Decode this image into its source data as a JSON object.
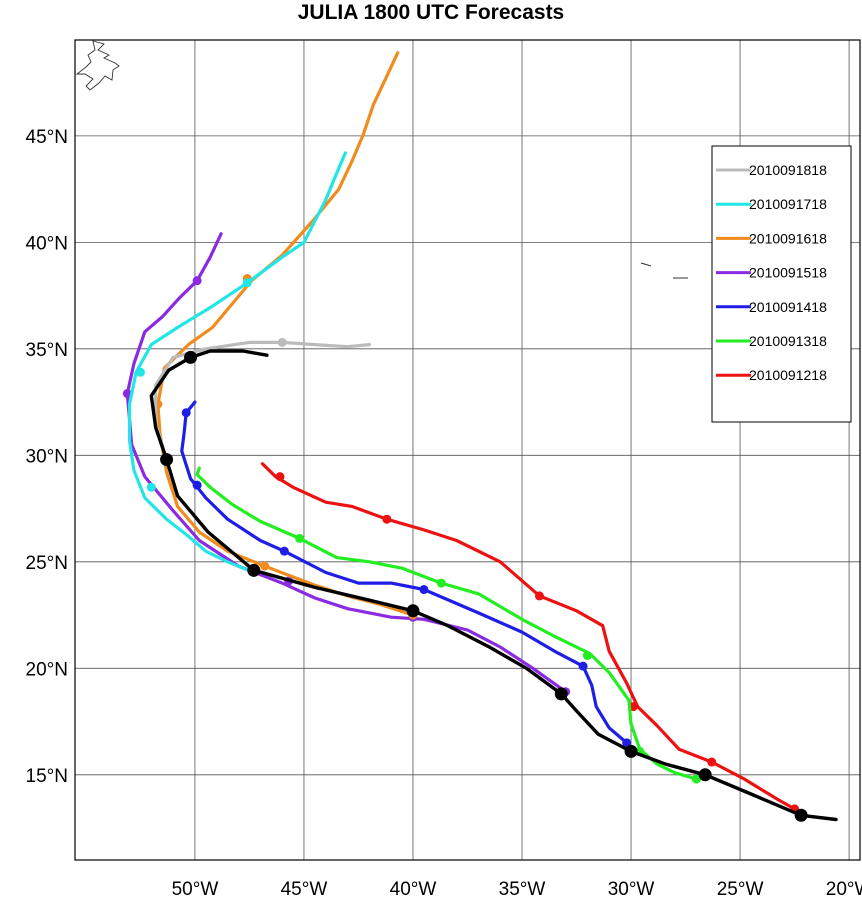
{
  "title": "JULIA 1800 UTC Forecasts",
  "chart_data": {
    "type": "line",
    "title": "JULIA 1800 UTC Forecasts",
    "x_axis": {
      "units": "degrees longitude",
      "range": [
        -55.5,
        -19.5
      ],
      "ticks": [
        -50,
        -45,
        -40,
        -35,
        -30,
        -25,
        -20
      ],
      "tick_labels": [
        "50°W",
        "45°W",
        "40°W",
        "35°W",
        "30°W",
        "25°W",
        "20°W"
      ]
    },
    "y_axis": {
      "units": "degrees latitude",
      "range": [
        11.0,
        49.5
      ],
      "ticks": [
        15,
        20,
        25,
        30,
        35,
        40,
        45
      ],
      "tick_labels": [
        "15°N",
        "20°N",
        "25°N",
        "30°N",
        "35°N",
        "40°N",
        "45°N"
      ]
    },
    "grid": true,
    "legend_position": "right",
    "best_track": {
      "color": "#000000",
      "path": [
        [
          -20.6,
          12.9
        ],
        [
          -22.2,
          13.1
        ],
        [
          -24.5,
          14.1
        ],
        [
          -26.6,
          15.0
        ],
        [
          -28.4,
          15.5
        ],
        [
          -30.0,
          16.1
        ],
        [
          -31.5,
          16.9
        ],
        [
          -32.5,
          18.0
        ],
        [
          -33.2,
          18.8
        ],
        [
          -34.8,
          20.0
        ],
        [
          -36.5,
          21.0
        ],
        [
          -38.4,
          22.0
        ],
        [
          -40.0,
          22.7
        ],
        [
          -42.0,
          23.2
        ],
        [
          -44.5,
          23.8
        ],
        [
          -47.3,
          24.6
        ],
        [
          -49.4,
          26.4
        ],
        [
          -50.8,
          28.1
        ],
        [
          -51.3,
          29.8
        ],
        [
          -51.8,
          31.3
        ],
        [
          -52.0,
          32.8
        ],
        [
          -51.2,
          34.0
        ],
        [
          -50.2,
          34.6
        ],
        [
          -49.3,
          34.9
        ],
        [
          -47.8,
          34.9
        ],
        [
          -46.7,
          34.7
        ]
      ],
      "markers": [
        [
          -22.2,
          13.1
        ],
        [
          -26.6,
          15.0
        ],
        [
          -30.0,
          16.1
        ],
        [
          -33.2,
          18.8
        ],
        [
          -40.0,
          22.7
        ],
        [
          -47.3,
          24.6
        ],
        [
          -51.3,
          29.8
        ],
        [
          -50.2,
          34.6
        ]
      ]
    },
    "series": [
      {
        "name": "2010091818",
        "color": "#bbbbbb",
        "path": [
          [
            -51.3,
            29.8
          ],
          [
            -51.8,
            31.5
          ],
          [
            -51.8,
            33.3
          ],
          [
            -51.0,
            34.6
          ],
          [
            -49.5,
            35.0
          ],
          [
            -47.5,
            35.3
          ],
          [
            -46.0,
            35.3
          ],
          [
            -44.5,
            35.2
          ],
          [
            -43.0,
            35.1
          ],
          [
            -42.0,
            35.2
          ]
        ],
        "markers": [
          [
            -51.3,
            29.8
          ],
          [
            -46.0,
            35.3
          ]
        ]
      },
      {
        "name": "2010091718",
        "color": "#22e5e5",
        "path": [
          [
            -47.3,
            24.5
          ],
          [
            -48.5,
            25.0
          ],
          [
            -49.5,
            25.5
          ],
          [
            -50.3,
            26.2
          ],
          [
            -51.3,
            27.0
          ],
          [
            -52.3,
            28.0
          ],
          [
            -52.8,
            29.3
          ],
          [
            -53.0,
            30.7
          ],
          [
            -53.0,
            32.4
          ],
          [
            -52.7,
            33.9
          ],
          [
            -52.0,
            35.2
          ],
          [
            -50.8,
            36.0
          ],
          [
            -49.2,
            37.0
          ],
          [
            -47.6,
            38.1
          ],
          [
            -46.0,
            39.3
          ],
          [
            -45.0,
            40.0
          ],
          [
            -44.0,
            42.0
          ],
          [
            -43.6,
            43.0
          ],
          [
            -43.1,
            44.2
          ]
        ],
        "markers": [
          [
            -47.3,
            24.5
          ],
          [
            -52.0,
            28.5
          ],
          [
            -52.5,
            33.9
          ],
          [
            -47.6,
            38.1
          ]
        ]
      },
      {
        "name": "2010091618",
        "color": "#f08c1e",
        "path": [
          [
            -40.0,
            22.5
          ],
          [
            -41.5,
            23.0
          ],
          [
            -43.0,
            23.4
          ],
          [
            -44.5,
            23.9
          ],
          [
            -46.8,
            24.8
          ],
          [
            -48.5,
            25.5
          ],
          [
            -49.8,
            26.4
          ],
          [
            -50.8,
            27.6
          ],
          [
            -51.3,
            29.2
          ],
          [
            -51.6,
            31.0
          ],
          [
            -51.7,
            32.4
          ],
          [
            -51.4,
            34.1
          ],
          [
            -50.3,
            35.2
          ],
          [
            -49.2,
            36.0
          ],
          [
            -48.3,
            37.1
          ],
          [
            -47.4,
            38.2
          ],
          [
            -46.0,
            39.4
          ],
          [
            -44.6,
            41.0
          ],
          [
            -43.4,
            42.5
          ],
          [
            -42.8,
            43.8
          ],
          [
            -42.3,
            45.0
          ],
          [
            -41.8,
            46.5
          ],
          [
            -41.2,
            47.8
          ],
          [
            -40.7,
            48.9
          ]
        ],
        "markers": [
          [
            -40.0,
            22.5
          ],
          [
            -46.8,
            24.8
          ],
          [
            -51.7,
            32.4
          ],
          [
            -47.6,
            38.3
          ]
        ]
      },
      {
        "name": "2010091518",
        "color": "#8a2be2",
        "path": [
          [
            -33.0,
            18.9
          ],
          [
            -34.5,
            20.0
          ],
          [
            -36.0,
            21.0
          ],
          [
            -37.5,
            21.8
          ],
          [
            -39.5,
            22.3
          ],
          [
            -41.0,
            22.4
          ],
          [
            -43.0,
            22.8
          ],
          [
            -44.5,
            23.3
          ],
          [
            -46.0,
            24.0
          ],
          [
            -48.0,
            24.8
          ],
          [
            -49.8,
            26.0
          ],
          [
            -51.0,
            27.4
          ],
          [
            -52.3,
            29.0
          ],
          [
            -52.9,
            30.5
          ],
          [
            -53.1,
            32.9
          ],
          [
            -52.8,
            34.3
          ],
          [
            -52.3,
            35.8
          ],
          [
            -51.5,
            36.5
          ],
          [
            -50.7,
            37.4
          ],
          [
            -49.9,
            38.2
          ],
          [
            -49.3,
            39.3
          ],
          [
            -48.8,
            40.4
          ]
        ],
        "markers": [
          [
            -33.0,
            18.9
          ],
          [
            -40.0,
            22.4
          ],
          [
            -45.7,
            24.1
          ],
          [
            -53.1,
            32.9
          ],
          [
            -49.9,
            38.2
          ]
        ]
      },
      {
        "name": "2010091418",
        "color": "#1e1ee6",
        "path": [
          [
            -30.2,
            16.5
          ],
          [
            -31.0,
            17.2
          ],
          [
            -31.6,
            18.2
          ],
          [
            -31.8,
            19.2
          ],
          [
            -32.2,
            20.1
          ],
          [
            -33.5,
            20.8
          ],
          [
            -35.0,
            21.7
          ],
          [
            -37.0,
            22.6
          ],
          [
            -39.5,
            23.7
          ],
          [
            -41.0,
            24.0
          ],
          [
            -42.5,
            24.0
          ],
          [
            -44.0,
            24.5
          ],
          [
            -45.9,
            25.5
          ],
          [
            -47.0,
            26.0
          ],
          [
            -48.5,
            27.0
          ],
          [
            -49.5,
            28.0
          ],
          [
            -50.2,
            28.9
          ],
          [
            -50.6,
            30.2
          ],
          [
            -50.5,
            31.0
          ],
          [
            -50.4,
            32.0
          ],
          [
            -50.0,
            32.5
          ]
        ],
        "markers": [
          [
            -30.2,
            16.5
          ],
          [
            -32.2,
            20.1
          ],
          [
            -39.5,
            23.7
          ],
          [
            -45.9,
            25.5
          ],
          [
            -49.9,
            28.6
          ],
          [
            -50.4,
            32.0
          ]
        ]
      },
      {
        "name": "2010091318",
        "color": "#22ee22",
        "path": [
          [
            -27.0,
            14.8
          ],
          [
            -28.0,
            15.1
          ],
          [
            -28.8,
            15.5
          ],
          [
            -29.6,
            16.2
          ],
          [
            -30.0,
            17.4
          ],
          [
            -30.1,
            18.5
          ],
          [
            -31.0,
            19.8
          ],
          [
            -31.9,
            20.7
          ],
          [
            -33.5,
            21.5
          ],
          [
            -35.0,
            22.3
          ],
          [
            -37.0,
            23.5
          ],
          [
            -38.7,
            24.0
          ],
          [
            -40.5,
            24.7
          ],
          [
            -42.0,
            25.0
          ],
          [
            -43.5,
            25.2
          ],
          [
            -45.2,
            26.1
          ],
          [
            -47.0,
            26.9
          ],
          [
            -48.3,
            27.7
          ],
          [
            -49.3,
            28.5
          ],
          [
            -49.9,
            29.1
          ],
          [
            -49.8,
            29.4
          ]
        ],
        "markers": [
          [
            -27.0,
            14.8
          ],
          [
            -29.6,
            16.1
          ],
          [
            -32.0,
            20.6
          ],
          [
            -38.7,
            24.0
          ],
          [
            -45.2,
            26.1
          ]
        ]
      },
      {
        "name": "2010091218",
        "color": "#ee1111",
        "path": [
          [
            -22.5,
            13.4
          ],
          [
            -23.2,
            13.8
          ],
          [
            -24.8,
            14.8
          ],
          [
            -26.3,
            15.6
          ],
          [
            -27.8,
            16.2
          ],
          [
            -28.8,
            17.3
          ],
          [
            -29.7,
            18.2
          ],
          [
            -30.2,
            19.3
          ],
          [
            -31.0,
            20.8
          ],
          [
            -31.3,
            22.0
          ],
          [
            -32.5,
            22.7
          ],
          [
            -34.2,
            23.4
          ],
          [
            -36.0,
            25.0
          ],
          [
            -38.0,
            26.0
          ],
          [
            -39.5,
            26.5
          ],
          [
            -41.2,
            27.0
          ],
          [
            -42.8,
            27.6
          ],
          [
            -44.0,
            27.8
          ],
          [
            -45.5,
            28.5
          ],
          [
            -46.3,
            29.0
          ],
          [
            -46.9,
            29.6
          ]
        ],
        "markers": [
          [
            -22.5,
            13.4
          ],
          [
            -26.3,
            15.6
          ],
          [
            -29.9,
            18.2
          ],
          [
            -34.2,
            23.4
          ],
          [
            -41.2,
            27.0
          ],
          [
            -46.1,
            29.0
          ]
        ]
      }
    ]
  }
}
